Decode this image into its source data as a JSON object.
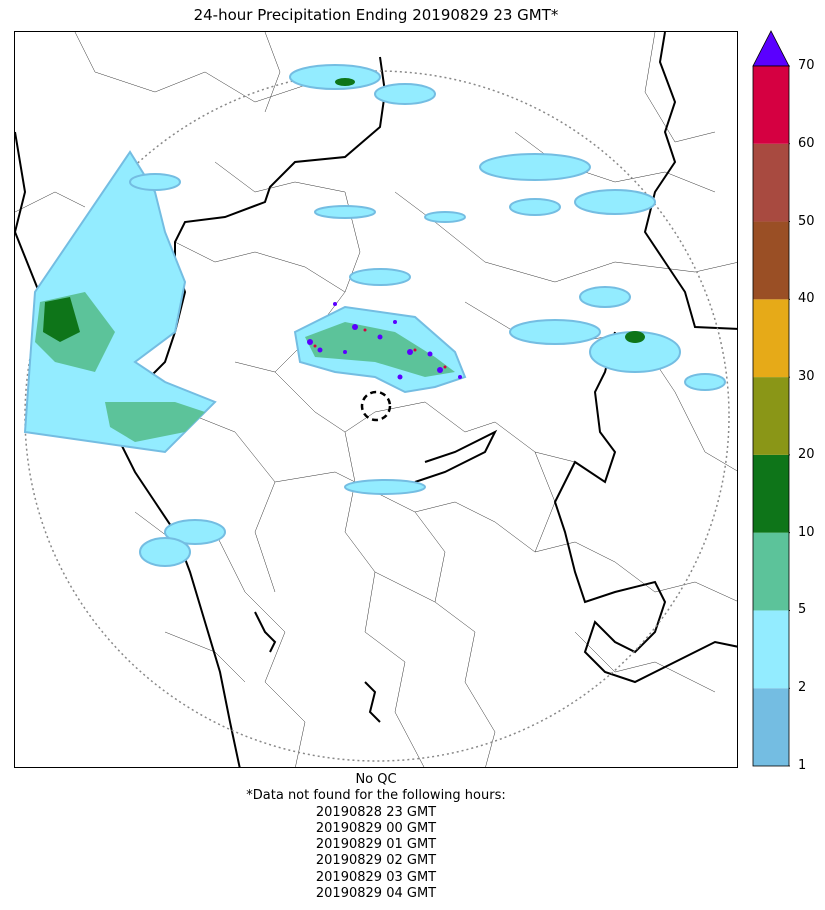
{
  "title": "24-hour Precipitation Ending 20190829 23 GMT*",
  "colorbar": {
    "ticks": [
      "1",
      "2",
      "5",
      "10",
      "20",
      "30",
      "40",
      "50",
      "60",
      "70"
    ],
    "colors": [
      "#74bde2",
      "#93ecff",
      "#5cc39a",
      "#0e7519",
      "#8a9617",
      "#e6aa18",
      "#9a4f25",
      "#a84a40",
      "#d50041"
    ],
    "over_color": "#5a00ff"
  },
  "footer": {
    "qc": "No QC",
    "note": "*Data not found for the following hours:",
    "hours": [
      "20190828 23 GMT",
      "20190829 00 GMT",
      "20190829 01 GMT",
      "20190829 02 GMT",
      "20190829 03 GMT",
      "20190829 04 GMT"
    ]
  }
}
